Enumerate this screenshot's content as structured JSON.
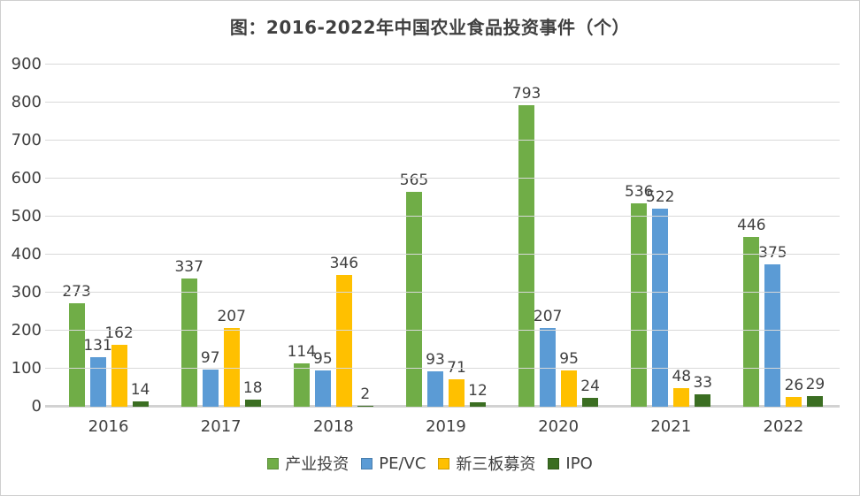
{
  "title": "图：2016-2022年中国农业食品投资事件（个）",
  "chart_data": {
    "type": "bar",
    "title": "图：2016-2022年中国农业食品投资事件（个）",
    "categories": [
      "2016",
      "2017",
      "2018",
      "2019",
      "2020",
      "2021",
      "2022"
    ],
    "series": [
      {
        "name": "产业投资",
        "color": "#70AD47",
        "values": [
          273,
          337,
          114,
          565,
          793,
          536,
          446
        ]
      },
      {
        "name": "PE/VC",
        "color": "#5B9BD5",
        "values": [
          131,
          97,
          95,
          93,
          207,
          522,
          375
        ]
      },
      {
        "name": "新三板募资",
        "color": "#FFC000",
        "values": [
          162,
          207,
          346,
          71,
          95,
          48,
          26
        ]
      },
      {
        "name": "IPO",
        "color": "#3B6E22",
        "values": [
          14,
          18,
          2,
          12,
          24,
          33,
          29
        ]
      }
    ],
    "xlabel": "",
    "ylabel": "",
    "ylim": [
      0,
      900
    ],
    "yticks": [
      0,
      100,
      200,
      300,
      400,
      500,
      600,
      700,
      800,
      900
    ],
    "grid": true,
    "data_labels": true,
    "legend_position": "bottom"
  },
  "colors": {
    "title_text": "#404040",
    "axis_text": "#404040",
    "data_label_text": "#404040",
    "gridline": "#D9D9D9",
    "baseline": "#D2D2D2",
    "frame_border": "#CFCFCF",
    "background": "#FFFFFF"
  }
}
